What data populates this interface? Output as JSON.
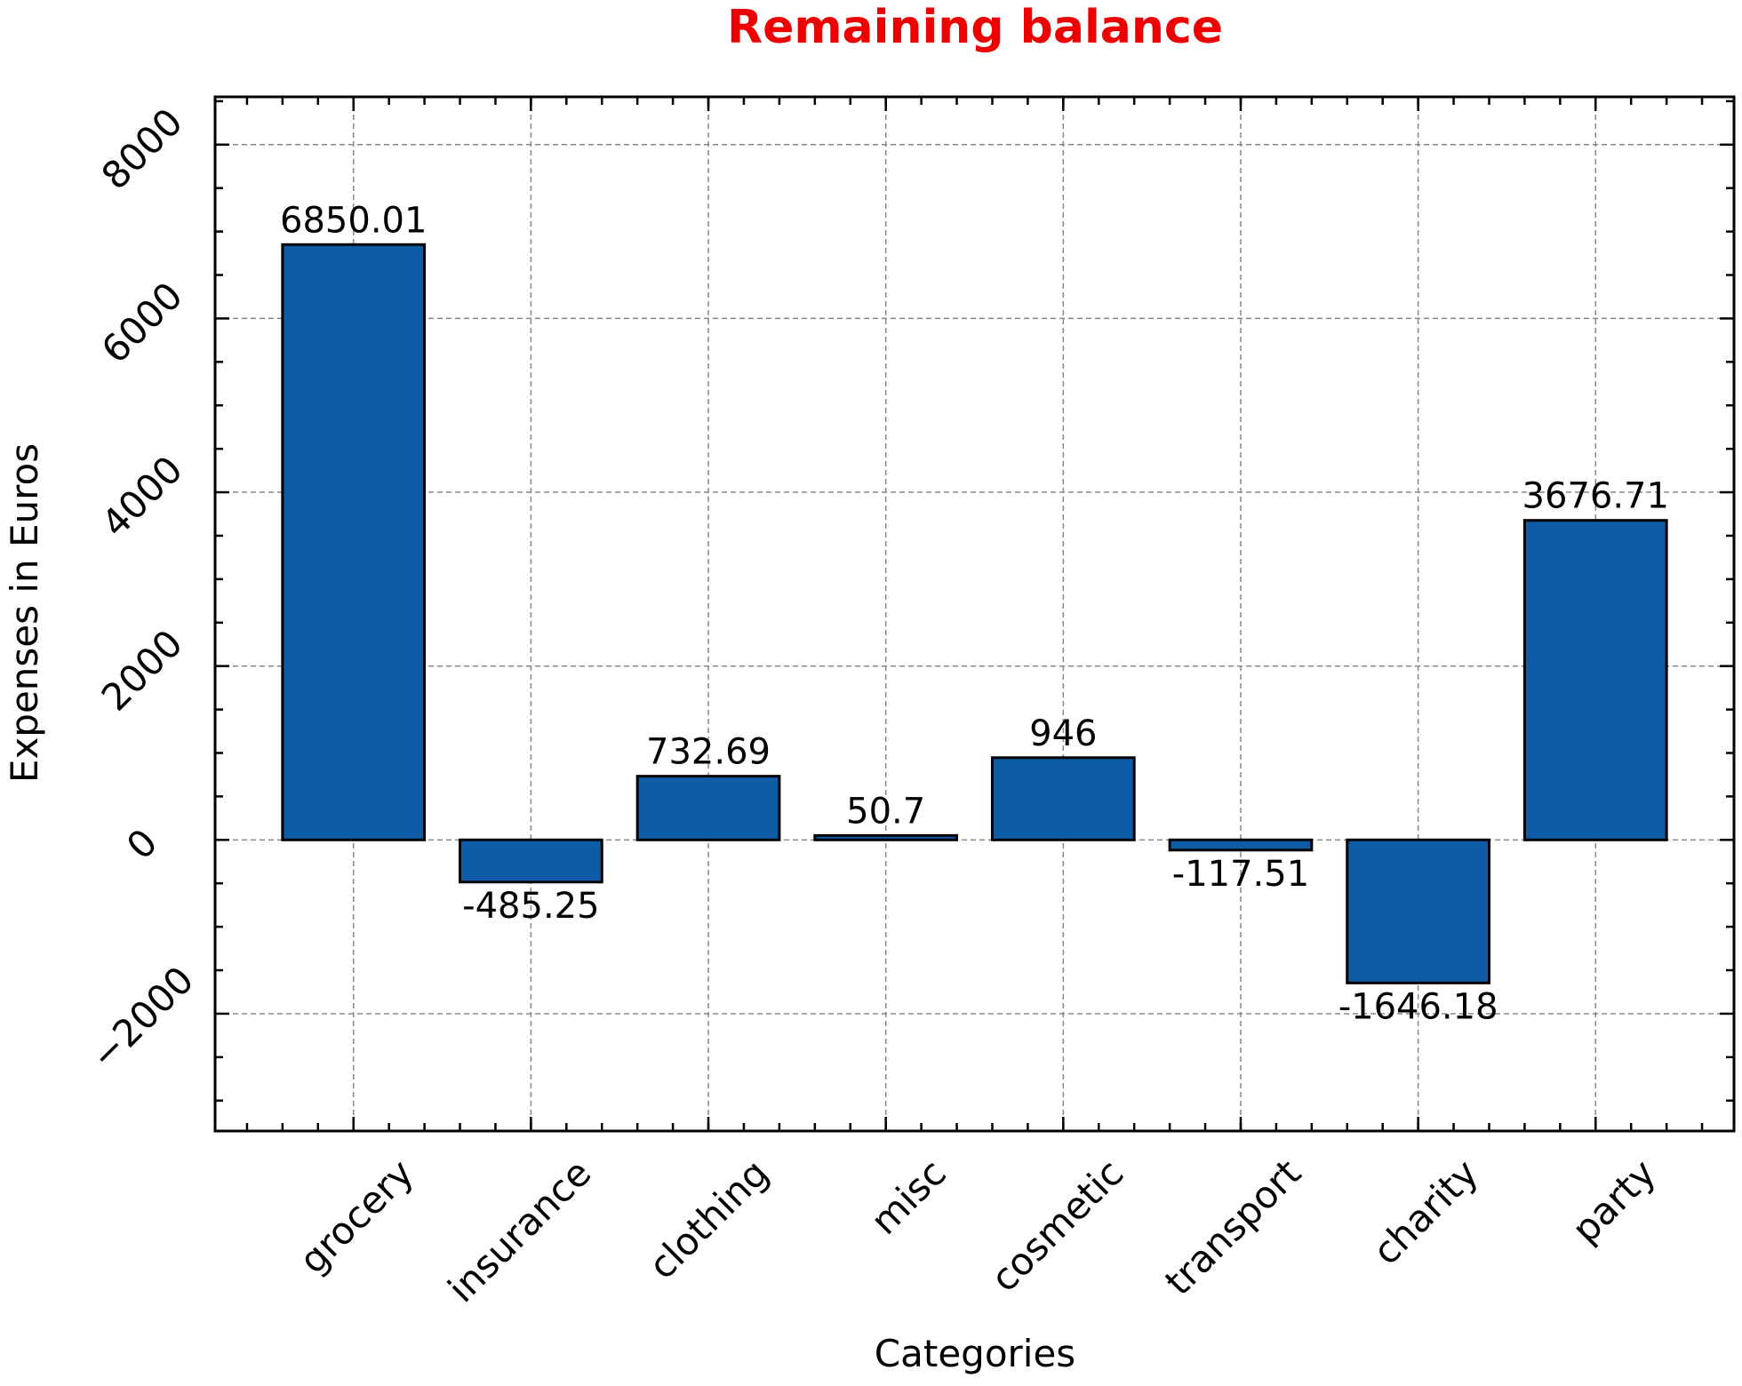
{
  "chart_data": {
    "type": "bar",
    "title": "Remaining balance",
    "title_color": "#ee0000",
    "xlabel": "Categories",
    "ylabel": "Expenses in Euros",
    "categories": [
      "grocery",
      "insurance",
      "clothing",
      "misc",
      "cosmetic",
      "transport",
      "charity",
      "party"
    ],
    "values": [
      6850.01,
      -485.25,
      732.69,
      50.7,
      946,
      -117.51,
      -1646.18,
      3676.71
    ],
    "value_labels": [
      "6850.01",
      "-485.25",
      "732.69",
      "50.7",
      "946",
      "-117.51",
      "-1646.18",
      "3676.71"
    ],
    "yticks": [
      -2000,
      0,
      2000,
      4000,
      6000,
      8000
    ],
    "ytick_labels": [
      "−2000",
      "0",
      "2000",
      "4000",
      "6000",
      "8000"
    ],
    "ylim": [
      -3350,
      8550
    ],
    "bar_color": "#0e5ca8",
    "grid": true
  }
}
